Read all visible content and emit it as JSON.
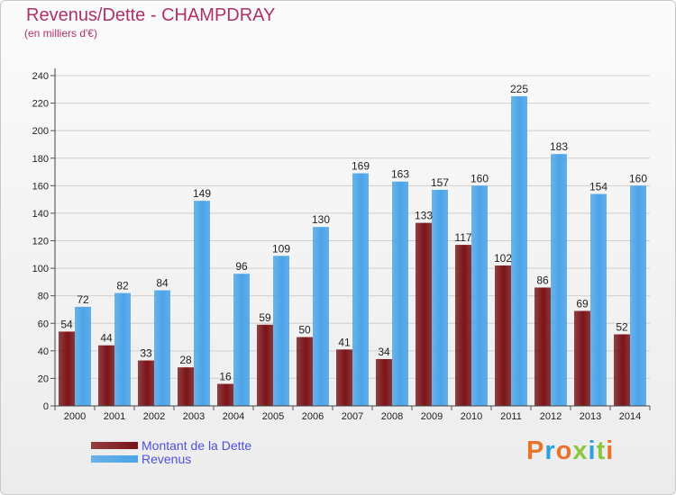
{
  "chart_data": {
    "type": "bar",
    "title": "Revenus/Dette - CHAMPDRAY",
    "subtitle": "(en milliers d'€)",
    "categories": [
      "2000",
      "2001",
      "2002",
      "2003",
      "2004",
      "2005",
      "2006",
      "2007",
      "2008",
      "2009",
      "2010",
      "2011",
      "2012",
      "2013",
      "2014"
    ],
    "series": [
      {
        "name": "Montant de la Dette",
        "color": "#7a1418",
        "values": [
          54,
          44,
          33,
          28,
          16,
          59,
          50,
          41,
          34,
          133,
          117,
          102,
          86,
          69,
          52
        ]
      },
      {
        "name": "Revenus",
        "color": "#4aa3e8",
        "values": [
          72,
          82,
          84,
          149,
          96,
          109,
          130,
          169,
          163,
          157,
          160,
          225,
          183,
          154,
          160
        ]
      }
    ],
    "ylim": [
      0,
      240
    ],
    "yticks": [
      0,
      20,
      40,
      60,
      80,
      100,
      120,
      140,
      160,
      180,
      200,
      220,
      240
    ],
    "grid": true,
    "legend_position": "bottom-left"
  },
  "logo": {
    "text": "Proxiti"
  }
}
